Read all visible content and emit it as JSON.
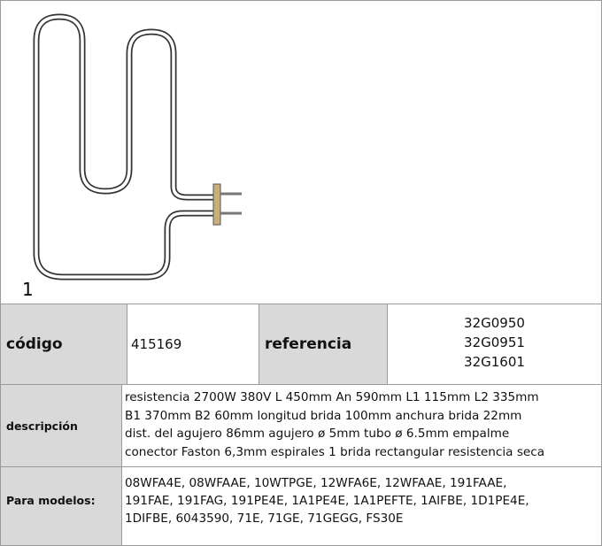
{
  "figure": {
    "label": "1"
  },
  "table": {
    "codigo_label": "código",
    "codigo": "415169",
    "referencia_label": "referencia",
    "referencias": [
      "32G0950",
      "32G0951",
      "32G1601"
    ],
    "descripcion_label": "descripción",
    "descripcion_lines": [
      "resistencia  2700W 380V L 450mm An 590mm L1 115mm L2 335mm",
      "B1 370mm B2 60mm longitud brida 100mm anchura brida 22mm",
      "dist. del agujero 86mm agujero ø 5mm tubo ø 6.5mm empalme",
      "conector Faston 6,3mm espirales 1 brida rectangular  resistencia seca"
    ],
    "modelos_label": "Para modelos:",
    "modelos_lines": [
      "08WFA4E, 08WFAAE, 10WTPGE, 12WFA6E, 12WFAAE, 191FAAE,",
      "191FAE, 191FAG, 191PE4E, 1A1PE4E, 1A1PEFTE, 1AIFBE, 1D1PE4E,",
      "1DIFBE, 6043590, 71E, 71GE, 71GEGG, FS30E"
    ]
  }
}
